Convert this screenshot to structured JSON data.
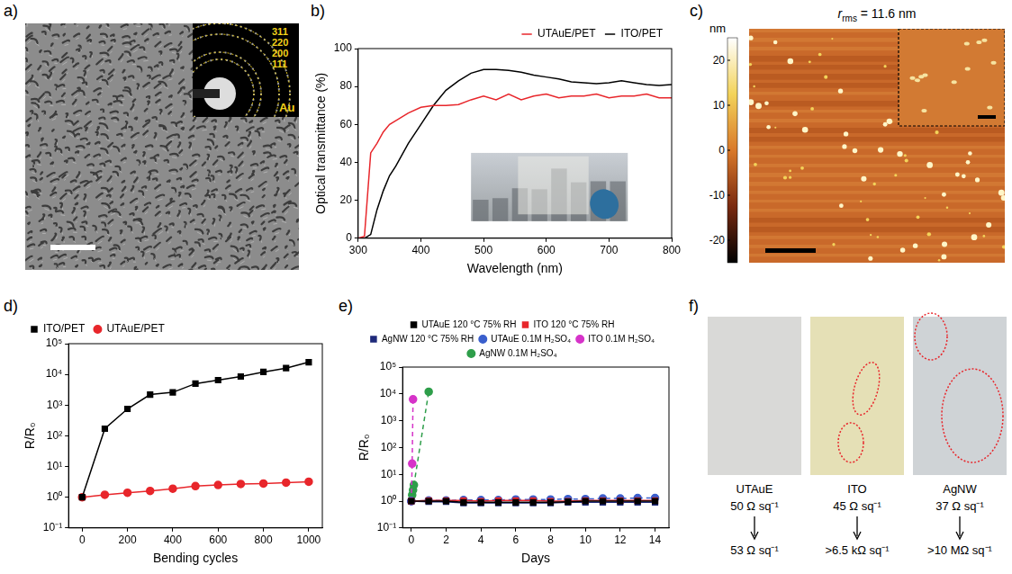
{
  "panel_a": {
    "panel_label": "a)",
    "inset_ring_labels": [
      "311",
      "220",
      "200",
      "111"
    ],
    "inset_label": "Au"
  },
  "panel_c": {
    "panel_label": "c)",
    "title": {
      "symbol": "r",
      "subscript": "rms",
      "text": "= 11.6 nm"
    },
    "colorbar": {
      "unit": "nm",
      "range": [
        -25,
        25
      ],
      "ticks": [
        20,
        10,
        0,
        -10,
        -20
      ]
    }
  },
  "panel_f": {
    "panel_label": "f)",
    "samples": [
      {
        "name": "UTAuE",
        "before": "50 Ω sq⁻¹",
        "after": "53 Ω sq⁻¹"
      },
      {
        "name": "ITO",
        "before": "45 Ω sq⁻¹",
        "after": ">6.5 kΩ sq⁻¹"
      },
      {
        "name": "AgNW",
        "before": "37 Ω sq⁻¹",
        "after": ">10 MΩ sq⁻¹"
      }
    ]
  },
  "chart_data": [
    {
      "panel_label": "b)",
      "type": "line",
      "x_label": "Wavelength (nm)",
      "y_label": "Optical transmittance (%)",
      "x": [
        300,
        310,
        320,
        330,
        340,
        350,
        360,
        380,
        400,
        420,
        440,
        460,
        480,
        500,
        520,
        540,
        560,
        580,
        600,
        620,
        640,
        660,
        680,
        700,
        720,
        740,
        760,
        780,
        800
      ],
      "series": [
        {
          "name": "UTAuE/PET",
          "color": "#e8262b",
          "marker": "none",
          "line_style": "solid",
          "values": [
            0,
            1,
            45,
            50,
            56,
            60,
            62,
            66,
            69,
            70,
            70,
            70.5,
            73,
            75,
            73,
            76,
            73,
            75,
            76,
            74,
            75,
            75,
            76,
            74,
            75,
            75,
            76,
            74,
            74
          ]
        },
        {
          "name": "ITO/PET",
          "color": "#000000",
          "marker": "none",
          "line_style": "solid",
          "values": [
            0,
            0,
            2,
            15,
            25,
            33,
            38,
            50,
            60,
            70,
            78,
            83,
            87,
            89,
            89,
            88.5,
            87.5,
            86,
            85,
            84,
            82.5,
            82,
            81.5,
            82,
            83,
            82,
            81,
            80.5,
            81
          ]
        }
      ],
      "xlim": [
        300,
        800
      ],
      "xticks": [
        300,
        400,
        500,
        600,
        700,
        800
      ],
      "ylim": [
        0,
        100
      ],
      "yticks": [
        0,
        20,
        40,
        60,
        80,
        100
      ],
      "grid": false,
      "legend": "top-right"
    },
    {
      "panel_label": "d)",
      "type": "line",
      "x_label": "Bending cycles",
      "y_label": "R/R₀",
      "log": "y",
      "x": [
        0,
        100,
        200,
        300,
        400,
        500,
        600,
        700,
        800,
        900,
        1000
      ],
      "series": [
        {
          "name": "ITO/PET",
          "color": "#000000",
          "marker": "square",
          "line_style": "solid",
          "values": [
            1,
            170,
            750,
            2200,
            2600,
            5000,
            6500,
            8500,
            12000,
            16000,
            25000
          ]
        },
        {
          "name": "UTAuE/PET",
          "color": "#e8262b",
          "marker": "circle",
          "line_style": "solid",
          "values": [
            1,
            1.2,
            1.4,
            1.6,
            1.9,
            2.3,
            2.5,
            2.7,
            2.8,
            3,
            3.2
          ]
        }
      ],
      "xlim": [
        -60,
        1060
      ],
      "xticks": [
        0,
        200,
        400,
        600,
        800,
        1000
      ],
      "ylim": [
        0.1,
        100000
      ],
      "yticks": [
        {
          "value": 0.1,
          "label": "10⁻¹"
        },
        {
          "value": 1,
          "label": "10⁰"
        },
        {
          "value": 10,
          "label": "10¹"
        },
        {
          "value": 100,
          "label": "10²"
        },
        {
          "value": 1000,
          "label": "10³"
        },
        {
          "value": 10000,
          "label": "10⁴"
        },
        {
          "value": 100000,
          "label": "10⁵"
        }
      ],
      "grid": false,
      "legend": "top-left"
    },
    {
      "panel_label": "e)",
      "type": "line",
      "x_label": "Days",
      "y_label": "R/R₀",
      "log": "y",
      "series": [
        {
          "name": "UTAuE 120 °C 75% RH",
          "color": "#000000",
          "marker": "square",
          "line_style": "solid",
          "x": [
            0,
            1,
            2,
            3,
            4,
            5,
            6,
            7,
            8,
            9,
            10,
            11,
            12,
            13,
            14
          ],
          "values": [
            1,
            1,
            1,
            0.9,
            0.9,
            0.9,
            0.9,
            0.9,
            0.9,
            0.95,
            1,
            1,
            1,
            1,
            1
          ]
        },
        {
          "name": "ITO 120 °C 75% RH",
          "color": "#e8262b",
          "marker": "square",
          "line_style": "solid",
          "x": [
            0,
            1,
            2,
            3,
            4,
            5,
            6,
            7,
            8,
            9,
            10,
            11,
            12,
            13,
            14
          ],
          "values": [
            1,
            1.05,
            1.05,
            1.05,
            1,
            1.05,
            1.05,
            1.05,
            1,
            1,
            1.05,
            1.05,
            1.05,
            1.05,
            1.05
          ]
        },
        {
          "name": "AgNW 120 °C 75% RH",
          "color": "#1f2a7a",
          "marker": "square",
          "line_style": "solid",
          "x": [
            0,
            1,
            2,
            3,
            4,
            5,
            6,
            7,
            8,
            9,
            10,
            11,
            12,
            13,
            14
          ],
          "values": [
            1,
            0.95,
            0.95,
            0.85,
            0.85,
            0.85,
            0.85,
            0.85,
            0.85,
            0.9,
            0.9,
            0.9,
            0.9,
            0.9,
            0.9
          ]
        },
        {
          "name": "UTAuE 0.1M H₂SO₄",
          "color": "#3a5fcd",
          "marker": "circle",
          "line_style": "dashed",
          "x": [
            0,
            1,
            2,
            3,
            4,
            5,
            6,
            7,
            8,
            9,
            10,
            11,
            12,
            13,
            14
          ],
          "values": [
            1,
            1.05,
            1.05,
            1.1,
            1.1,
            1.1,
            1.15,
            1.15,
            1.15,
            1.2,
            1.2,
            1.25,
            1.25,
            1.3,
            1.3
          ]
        },
        {
          "name": "ITO 0.1M H₂SO₄",
          "color": "#d633c9",
          "marker": "circle",
          "line_style": "dashed",
          "x": [
            0,
            0.05,
            0.1
          ],
          "values": [
            1,
            25,
            6300
          ]
        },
        {
          "name": "AgNW 0.1M H₂SO₄",
          "color": "#2e9e4a",
          "marker": "circle",
          "line_style": "dashed",
          "x": [
            0,
            0.05,
            0.1,
            0.15,
            1
          ],
          "values": [
            1,
            1.7,
            2.6,
            4,
            12000
          ]
        }
      ],
      "xlim": [
        -0.5,
        14.8
      ],
      "xticks": [
        0,
        2,
        4,
        6,
        8,
        10,
        12,
        14
      ],
      "ylim": [
        0.1,
        100000
      ],
      "yticks": [
        {
          "value": 0.1,
          "label": "10⁻¹"
        },
        {
          "value": 1,
          "label": "10⁰"
        },
        {
          "value": 10,
          "label": "10¹"
        },
        {
          "value": 100,
          "label": "10²"
        },
        {
          "value": 1000,
          "label": "10³"
        },
        {
          "value": 10000,
          "label": "10⁴"
        },
        {
          "value": 100000,
          "label": "10⁵"
        }
      ],
      "grid": false,
      "legend": "top"
    }
  ]
}
